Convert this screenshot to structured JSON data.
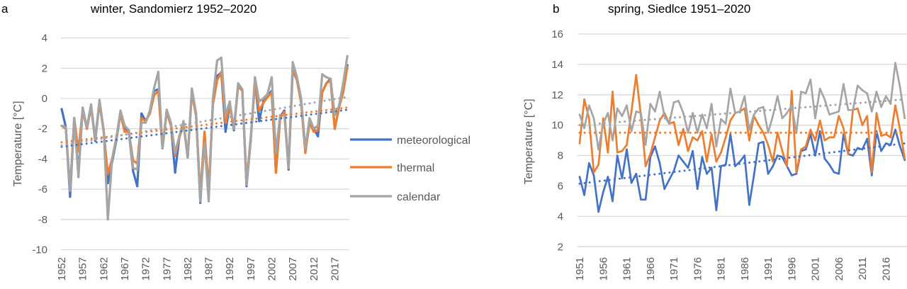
{
  "colors": {
    "meteorological": "#4472C4",
    "thermal": "#ED7D31",
    "calendar": "#A5A5A5",
    "grid": "#D9D9D9"
  },
  "chart_data": [
    {
      "type": "line",
      "panel": "a",
      "title": "winter, Sandomierz 1952–2020",
      "xlabel": "",
      "ylabel": "Temperature [°C]",
      "x_start": 1952,
      "x_end": 2020,
      "xtick_labels": [
        "1952",
        "1957",
        "1962",
        "1967",
        "1972",
        "1977",
        "1982",
        "1987",
        "1992",
        "1997",
        "2002",
        "2007",
        "2012",
        "2017"
      ],
      "ylim": [
        -10,
        4
      ],
      "ytick_labels": [
        "4",
        "2",
        "0",
        "-2",
        "-4",
        "-6",
        "-8",
        "-10"
      ],
      "grid": true,
      "legend": {
        "position": "right",
        "entries": [
          "meteorological",
          "thermal",
          "calendar"
        ]
      },
      "series": [
        {
          "name": "meteorological",
          "values": [
            -0.7,
            -1.9,
            -6.5,
            -1.3,
            -5.0,
            -0.7,
            -2.0,
            -0.5,
            -2.8,
            -0.2,
            -2.1,
            -5.6,
            -4.2,
            -2.8,
            -1.0,
            -1.9,
            -2.2,
            -4.8,
            -5.8,
            -1.0,
            -1.5,
            -0.9,
            0.5,
            0.6,
            -3.3,
            -0.8,
            -1.7,
            -4.9,
            -2.6,
            -1.6,
            -3.9,
            0.5,
            -1.1,
            -6.9,
            -2.4,
            -6.5,
            -0.2,
            1.5,
            1.7,
            -2.2,
            -0.4,
            -2.1,
            0.9,
            0.5,
            -5.8,
            -2.8,
            1.2,
            -1.5,
            -0.2,
            0.2,
            0.5,
            -4.9,
            -1.2,
            -0.8,
            -4.7,
            1.9,
            1.2,
            -0.2,
            -3.5,
            -1.5,
            -2.0,
            -2.5,
            0.4,
            1.0,
            1.3,
            -2.0,
            -0.6,
            0.5,
            2.2
          ],
          "trend": [
            -3.2,
            -0.75
          ]
        },
        {
          "name": "thermal",
          "values": [
            -1.8,
            -2.0,
            -6.0,
            -1.3,
            -3.5,
            -0.7,
            -2.0,
            -0.6,
            -2.6,
            -0.3,
            -2.2,
            -5.0,
            -4.0,
            -2.6,
            -1.0,
            -2.2,
            -2.2,
            -4.1,
            -4.3,
            -1.3,
            -1.5,
            -1.0,
            0.2,
            0.5,
            -3.3,
            -0.9,
            -1.8,
            -3.8,
            -2.6,
            -1.7,
            -3.9,
            0.4,
            -1.2,
            -6.4,
            -2.2,
            -6.0,
            -0.4,
            1.2,
            1.75,
            -1.6,
            -0.5,
            -2.0,
            0.8,
            0.5,
            -5.5,
            -2.6,
            1.0,
            -0.8,
            -0.3,
            0.1,
            0.4,
            -4.9,
            -1.3,
            -0.9,
            -4.5,
            2.0,
            1.2,
            -0.3,
            -3.6,
            -1.6,
            -2.2,
            -2.1,
            0.4,
            1.0,
            1.2,
            -2.0,
            -0.6,
            0.4,
            2.1
          ],
          "trend": [
            -2.9,
            -0.6
          ]
        },
        {
          "name": "calendar",
          "values": [
            -1.8,
            -1.9,
            -6.1,
            -1.3,
            -5.2,
            -0.6,
            -1.9,
            -0.4,
            -2.7,
            -0.1,
            -2.1,
            -8.0,
            -4.0,
            -2.7,
            -0.8,
            -1.8,
            -2.1,
            -4.6,
            -4.7,
            -1.6,
            -1.6,
            -0.8,
            0.7,
            1.75,
            -3.3,
            -0.75,
            -1.6,
            -3.6,
            -2.5,
            -1.5,
            -3.9,
            0.65,
            -1.0,
            -6.8,
            -2.9,
            -6.8,
            0,
            2.5,
            2.7,
            -1.1,
            -0.2,
            -2.0,
            1.0,
            0.6,
            -5.7,
            -2.7,
            1.4,
            -0.2,
            0,
            0.3,
            1.4,
            -3.6,
            -1.1,
            -1.1,
            -4.6,
            2.4,
            1.4,
            0,
            -3.3,
            -1.3,
            -2.0,
            -1.8,
            1.6,
            1.4,
            1.3,
            -1.1,
            -0.5,
            1.0,
            2.8
          ],
          "trend": [
            -3.1,
            0.1
          ]
        }
      ]
    },
    {
      "type": "line",
      "panel": "b",
      "title": "spring, Siedlce 1951–2020",
      "xlabel": "",
      "ylabel": "Temperature [°C]",
      "x_start": 1951,
      "x_end": 2020,
      "xtick_labels": [
        "1951",
        "1956",
        "1961",
        "1966",
        "1971",
        "1976",
        "1981",
        "1986",
        "1991",
        "1996",
        "2001",
        "2006",
        "2011",
        "2016"
      ],
      "ylim": [
        2,
        16
      ],
      "ytick_labels": [
        "16",
        "14",
        "12",
        "10",
        "8",
        "6",
        "4",
        "2"
      ],
      "grid": true,
      "series": [
        {
          "name": "meteorological",
          "values": [
            6.6,
            5.4,
            7.5,
            6.7,
            4.3,
            5.6,
            6.6,
            5.0,
            8.0,
            6.5,
            8.4,
            6.2,
            6.8,
            5.1,
            5.1,
            7.9,
            8.6,
            7.5,
            5.8,
            6.4,
            7.0,
            8.0,
            7.6,
            7.2,
            8.3,
            5.8,
            7.9,
            6.8,
            7.2,
            4.4,
            7.3,
            7.4,
            9.4,
            7.3,
            7.6,
            8.0,
            4.75,
            6.7,
            8.8,
            8.9,
            6.8,
            7.3,
            8.0,
            7.9,
            7.3,
            6.7,
            6.8,
            8.3,
            8.4,
            9.4,
            8.0,
            9.6,
            7.8,
            7.4,
            6.9,
            6.8,
            9.4,
            8.1,
            8.0,
            8.5,
            8.4,
            9.1,
            6.7,
            9.6,
            8.3,
            8.8,
            8.7,
            9.7,
            8.6,
            7.7
          ],
          "trend": [
            6.15,
            8.8
          ]
        },
        {
          "name": "thermal",
          "values": [
            8.8,
            11.7,
            10.45,
            6.9,
            7.4,
            10.45,
            8.2,
            12.2,
            8.2,
            8.3,
            8.7,
            10.9,
            13.3,
            10.6,
            7.3,
            8.1,
            9.2,
            10.3,
            10.8,
            10.1,
            10.2,
            8.7,
            9.75,
            8.3,
            9.2,
            9.0,
            9.6,
            7.6,
            9.4,
            7.6,
            8.2,
            9.2,
            10.3,
            10.8,
            10.9,
            11.1,
            9.0,
            10.6,
            10.0,
            9.5,
            8.7,
            7.6,
            9.5,
            8.3,
            7.3,
            12.25,
            6.9,
            8.4,
            8.6,
            9.7,
            9.0,
            10.3,
            9.0,
            9.2,
            9.2,
            10.6,
            9.8,
            8.1,
            11.0,
            11.1,
            10.0,
            10.6,
            6.9,
            10.8,
            9.3,
            9.4,
            9.2,
            11.3,
            9.7,
            7.8
          ],
          "trend": [
            9.5,
            9.5
          ]
        },
        {
          "name": "calendar",
          "values": [
            10.7,
            9.8,
            11.3,
            10.45,
            8.4,
            10.1,
            10.8,
            9.0,
            11.1,
            10.6,
            11.3,
            9.6,
            10.9,
            10.8,
            8.7,
            11.4,
            10.9,
            12.2,
            10.6,
            10.1,
            11.5,
            11.6,
            10.8,
            9.5,
            10.8,
            9.5,
            10.7,
            9.8,
            11.4,
            8.6,
            10.4,
            10.1,
            12.4,
            10.8,
            10.9,
            11.9,
            9.7,
            10.7,
            11.1,
            11.2,
            9.5,
            10.6,
            11.9,
            10.45,
            10.8,
            11.3,
            9.5,
            12.2,
            12.1,
            13.0,
            10.45,
            12.4,
            11.7,
            10.7,
            10.8,
            10.9,
            12.7,
            11.0,
            11.0,
            12.6,
            12.3,
            12.1,
            10.9,
            12.2,
            11.2,
            11.9,
            11.4,
            14.1,
            12.5,
            10.45
          ],
          "trend": [
            10.0,
            11.7
          ]
        }
      ]
    }
  ]
}
